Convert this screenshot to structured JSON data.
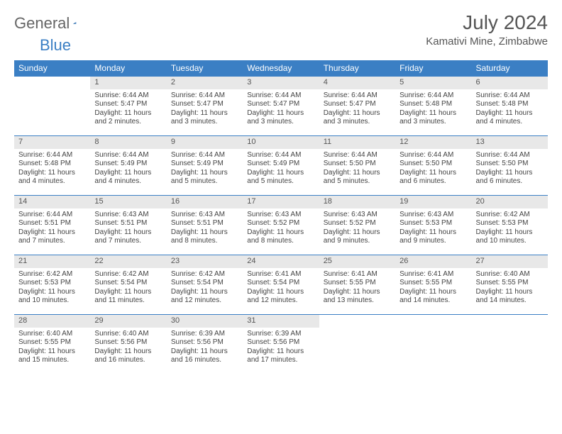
{
  "logo": {
    "word1": "General",
    "word2": "Blue"
  },
  "title": "July 2024",
  "location": "Kamativi Mine, Zimbabwe",
  "colors": {
    "header_bg": "#3b7fc4",
    "header_text": "#ffffff",
    "daynum_bg": "#e8e8e8",
    "daynum_text": "#555555",
    "body_text": "#444444",
    "divider": "#3b7fc4",
    "page_bg": "#ffffff"
  },
  "layout": {
    "columns": 7,
    "rows": 5,
    "start_weekday": 1
  },
  "weekdays": [
    "Sunday",
    "Monday",
    "Tuesday",
    "Wednesday",
    "Thursday",
    "Friday",
    "Saturday"
  ],
  "days": {
    "1": {
      "sunrise": "6:44 AM",
      "sunset": "5:47 PM",
      "daylight": "11 hours and 2 minutes."
    },
    "2": {
      "sunrise": "6:44 AM",
      "sunset": "5:47 PM",
      "daylight": "11 hours and 3 minutes."
    },
    "3": {
      "sunrise": "6:44 AM",
      "sunset": "5:47 PM",
      "daylight": "11 hours and 3 minutes."
    },
    "4": {
      "sunrise": "6:44 AM",
      "sunset": "5:47 PM",
      "daylight": "11 hours and 3 minutes."
    },
    "5": {
      "sunrise": "6:44 AM",
      "sunset": "5:48 PM",
      "daylight": "11 hours and 3 minutes."
    },
    "6": {
      "sunrise": "6:44 AM",
      "sunset": "5:48 PM",
      "daylight": "11 hours and 4 minutes."
    },
    "7": {
      "sunrise": "6:44 AM",
      "sunset": "5:48 PM",
      "daylight": "11 hours and 4 minutes."
    },
    "8": {
      "sunrise": "6:44 AM",
      "sunset": "5:49 PM",
      "daylight": "11 hours and 4 minutes."
    },
    "9": {
      "sunrise": "6:44 AM",
      "sunset": "5:49 PM",
      "daylight": "11 hours and 5 minutes."
    },
    "10": {
      "sunrise": "6:44 AM",
      "sunset": "5:49 PM",
      "daylight": "11 hours and 5 minutes."
    },
    "11": {
      "sunrise": "6:44 AM",
      "sunset": "5:50 PM",
      "daylight": "11 hours and 5 minutes."
    },
    "12": {
      "sunrise": "6:44 AM",
      "sunset": "5:50 PM",
      "daylight": "11 hours and 6 minutes."
    },
    "13": {
      "sunrise": "6:44 AM",
      "sunset": "5:50 PM",
      "daylight": "11 hours and 6 minutes."
    },
    "14": {
      "sunrise": "6:44 AM",
      "sunset": "5:51 PM",
      "daylight": "11 hours and 7 minutes."
    },
    "15": {
      "sunrise": "6:43 AM",
      "sunset": "5:51 PM",
      "daylight": "11 hours and 7 minutes."
    },
    "16": {
      "sunrise": "6:43 AM",
      "sunset": "5:51 PM",
      "daylight": "11 hours and 8 minutes."
    },
    "17": {
      "sunrise": "6:43 AM",
      "sunset": "5:52 PM",
      "daylight": "11 hours and 8 minutes."
    },
    "18": {
      "sunrise": "6:43 AM",
      "sunset": "5:52 PM",
      "daylight": "11 hours and 9 minutes."
    },
    "19": {
      "sunrise": "6:43 AM",
      "sunset": "5:53 PM",
      "daylight": "11 hours and 9 minutes."
    },
    "20": {
      "sunrise": "6:42 AM",
      "sunset": "5:53 PM",
      "daylight": "11 hours and 10 minutes."
    },
    "21": {
      "sunrise": "6:42 AM",
      "sunset": "5:53 PM",
      "daylight": "11 hours and 10 minutes."
    },
    "22": {
      "sunrise": "6:42 AM",
      "sunset": "5:54 PM",
      "daylight": "11 hours and 11 minutes."
    },
    "23": {
      "sunrise": "6:42 AM",
      "sunset": "5:54 PM",
      "daylight": "11 hours and 12 minutes."
    },
    "24": {
      "sunrise": "6:41 AM",
      "sunset": "5:54 PM",
      "daylight": "11 hours and 12 minutes."
    },
    "25": {
      "sunrise": "6:41 AM",
      "sunset": "5:55 PM",
      "daylight": "11 hours and 13 minutes."
    },
    "26": {
      "sunrise": "6:41 AM",
      "sunset": "5:55 PM",
      "daylight": "11 hours and 14 minutes."
    },
    "27": {
      "sunrise": "6:40 AM",
      "sunset": "5:55 PM",
      "daylight": "11 hours and 14 minutes."
    },
    "28": {
      "sunrise": "6:40 AM",
      "sunset": "5:55 PM",
      "daylight": "11 hours and 15 minutes."
    },
    "29": {
      "sunrise": "6:40 AM",
      "sunset": "5:56 PM",
      "daylight": "11 hours and 16 minutes."
    },
    "30": {
      "sunrise": "6:39 AM",
      "sunset": "5:56 PM",
      "daylight": "11 hours and 16 minutes."
    },
    "31": {
      "sunrise": "6:39 AM",
      "sunset": "5:56 PM",
      "daylight": "11 hours and 17 minutes."
    }
  },
  "labels": {
    "sunrise": "Sunrise:",
    "sunset": "Sunset:",
    "daylight": "Daylight:"
  }
}
